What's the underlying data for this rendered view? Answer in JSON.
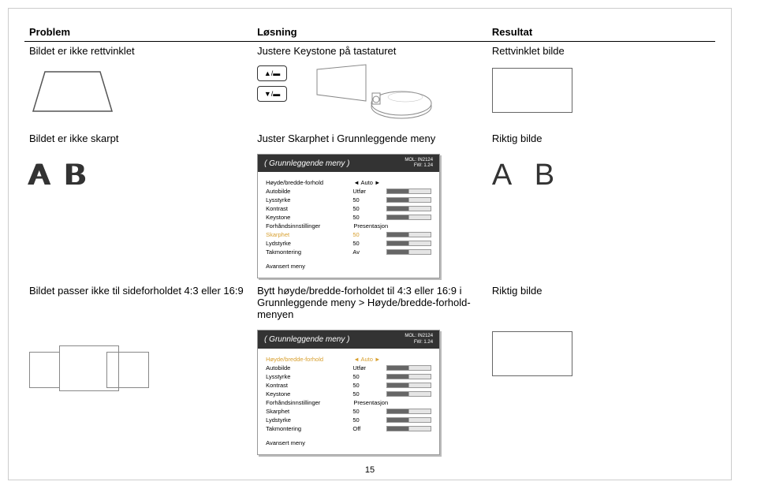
{
  "headers": {
    "problem": "Problem",
    "solution": "Løsning",
    "result": "Resultat"
  },
  "row1": {
    "problem": "Bildet er ikke rettvinklet",
    "solution": "Justere Keystone på tastaturet",
    "result": "Rettvinklet bilde",
    "key_up": "▲/▬",
    "key_down": "▼/▬"
  },
  "row2": {
    "problem": "Bildet er ikke skarpt",
    "solution": "Juster Skarphet i Grunnleggende meny",
    "result": "Riktig bilde",
    "ab_left": "A B",
    "ab_right": "A B"
  },
  "row3": {
    "problem": "Bildet passer ikke til sideforholdet 4:3 eller 16:9",
    "solution": "Bytt høyde/bredde-forholdet til 4:3 eller 16:9 i Grunnleggende meny > Høyde/bredde-forhold-menyen",
    "result": "Riktig bilde"
  },
  "menu1": {
    "title": "(   Grunnleggende meny   )",
    "mol": "MOL: IN2124",
    "fw": "FW: 1.24",
    "items": [
      {
        "label": "Høyde/bredde-forhold",
        "val": "◄ Auto ►",
        "bar": false,
        "hl": false
      },
      {
        "label": "Autobilde",
        "val": "Utfør",
        "bar": true,
        "hl": false
      },
      {
        "label": "Lysstyrke",
        "val": "50",
        "bar": true,
        "hl": false
      },
      {
        "label": "Kontrast",
        "val": "50",
        "bar": true,
        "hl": false
      },
      {
        "label": "Keystone",
        "val": "50",
        "bar": true,
        "hl": false
      },
      {
        "label": "Forhåndsinnstillinger",
        "val": "Presentasjon",
        "bar": false,
        "hl": false
      },
      {
        "label": "Skarphet",
        "val": "50",
        "bar": true,
        "hl": true
      },
      {
        "label": "Lydstyrke",
        "val": "50",
        "bar": true,
        "hl": false
      },
      {
        "label": "Takmontering",
        "val": "Av",
        "bar": true,
        "hl": false
      }
    ],
    "advanced": "Avansert meny"
  },
  "menu2": {
    "title": "(   Grunnleggende meny   )",
    "mol": "MOL: IN2124",
    "fw": "FW: 1.24",
    "items": [
      {
        "label": "Høyde/bredde-forhold",
        "val": "◄ Auto ►",
        "bar": false,
        "hl": true
      },
      {
        "label": "Autobilde",
        "val": "Utfør",
        "bar": true,
        "hl": false
      },
      {
        "label": "Lysstyrke",
        "val": "50",
        "bar": true,
        "hl": false
      },
      {
        "label": "Kontrast",
        "val": "50",
        "bar": true,
        "hl": false
      },
      {
        "label": "Keystone",
        "val": "50",
        "bar": true,
        "hl": false
      },
      {
        "label": "Forhåndsinnstillinger",
        "val": "Presentasjon",
        "bar": false,
        "hl": false
      },
      {
        "label": "Skarphet",
        "val": "50",
        "bar": true,
        "hl": false
      },
      {
        "label": "Lydstyrke",
        "val": "50",
        "bar": true,
        "hl": false
      },
      {
        "label": "Takmontering",
        "val": "Off",
        "bar": true,
        "hl": false
      }
    ],
    "advanced": "Avansert meny"
  },
  "page_number": "15",
  "colors": {
    "highlight": "#d8a030",
    "menu_header_bg": "#333333",
    "border": "#999999"
  }
}
